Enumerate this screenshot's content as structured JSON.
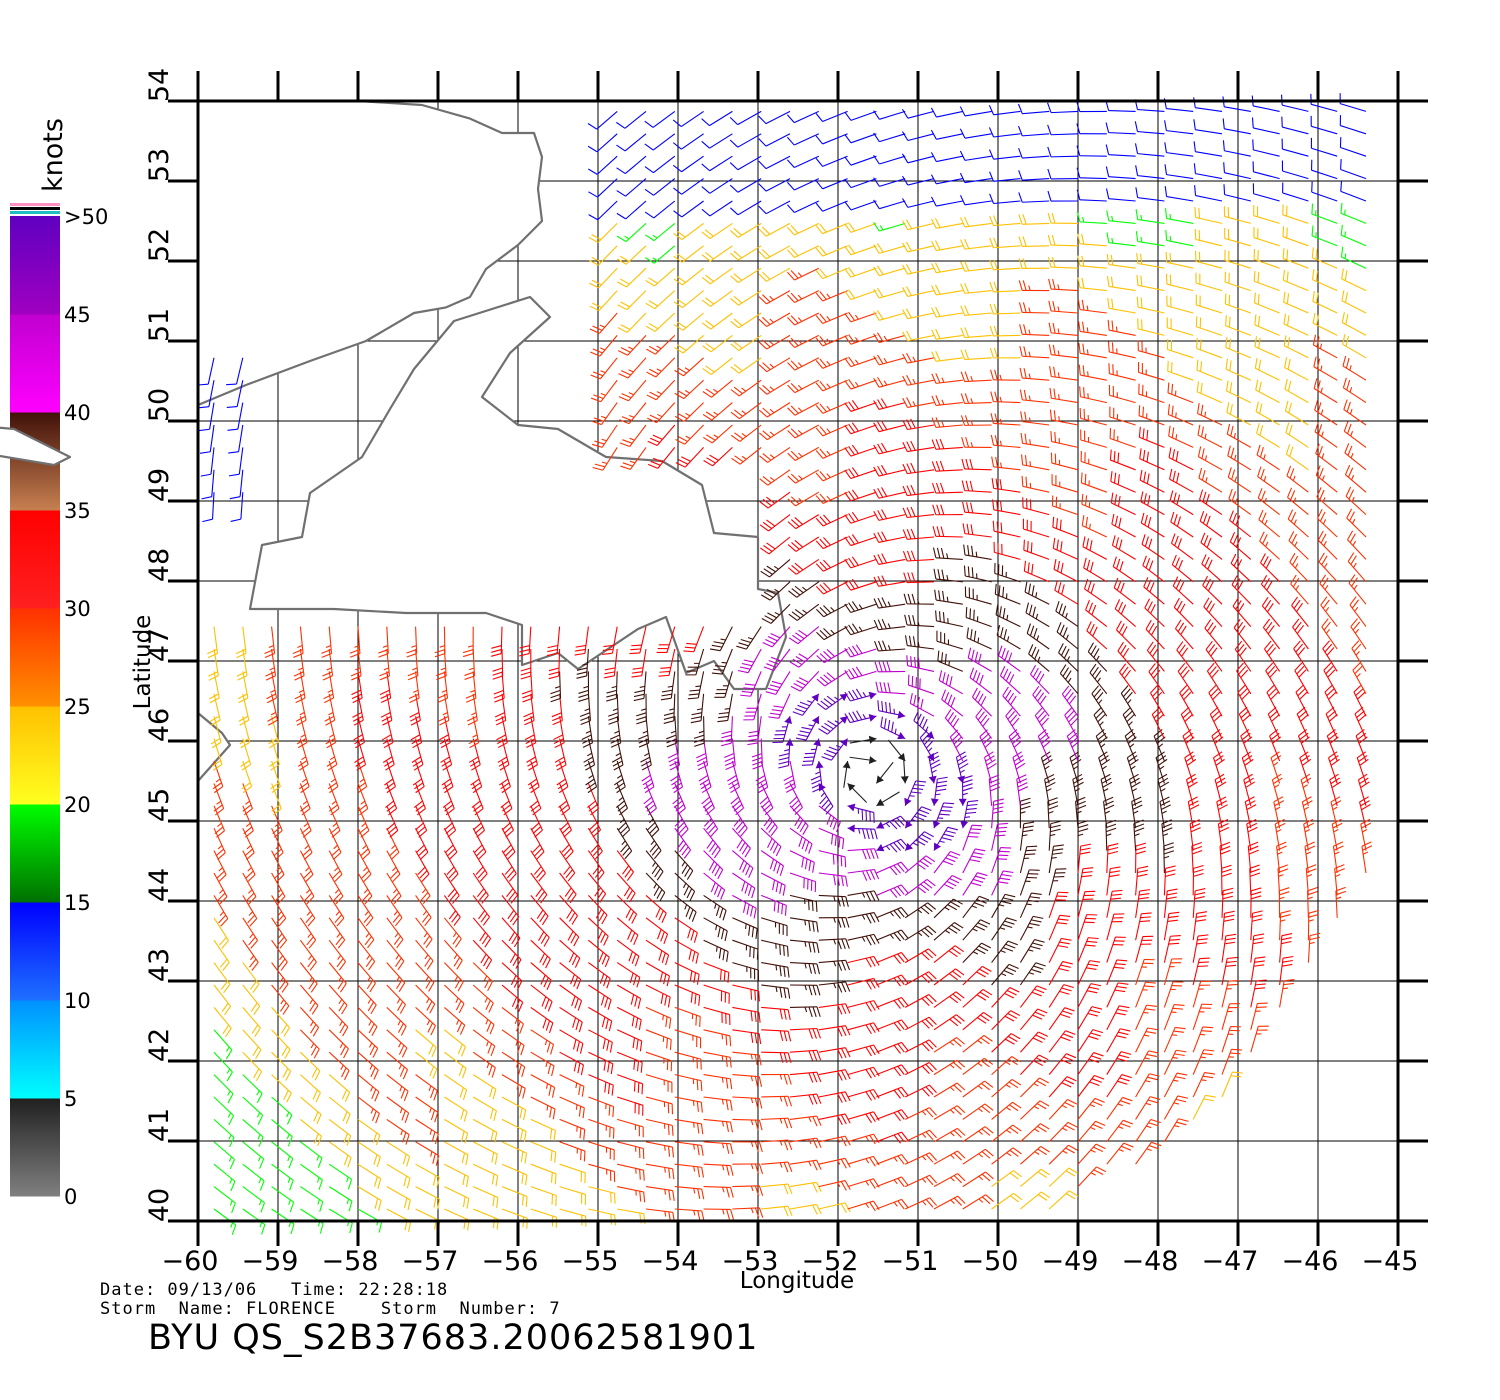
{
  "chart_data": {
    "type": "wind-barb-map",
    "xlabel": "Longitude",
    "ylabel": "Latitude",
    "xlim": [
      -60,
      -45
    ],
    "ylim": [
      40,
      54
    ],
    "x_ticks": [
      -60,
      -59,
      -58,
      -57,
      -56,
      -55,
      -54,
      -53,
      -52,
      -51,
      -50,
      -49,
      -48,
      -47,
      -46,
      -45
    ],
    "y_ticks": [
      40,
      41,
      42,
      43,
      44,
      45,
      46,
      47,
      48,
      49,
      50,
      51,
      52,
      53,
      54
    ],
    "grid": true,
    "storm_center": [
      -51.6,
      45.6
    ],
    "colorbar": {
      "title": "knots",
      "tick_labels": [
        "0",
        "5",
        "10",
        "15",
        "20",
        "25",
        "30",
        "35",
        "40",
        "45",
        ">50"
      ],
      "bands": [
        {
          "range": [
            0,
            5
          ],
          "colors": [
            "#808080",
            "#202020"
          ]
        },
        {
          "range": [
            5,
            10
          ],
          "colors": [
            "#00ffff",
            "#0090ff"
          ]
        },
        {
          "range": [
            10,
            15
          ],
          "colors": [
            "#1e70ff",
            "#0000ff"
          ]
        },
        {
          "range": [
            15,
            20
          ],
          "colors": [
            "#007000",
            "#00ff00"
          ]
        },
        {
          "range": [
            20,
            25
          ],
          "colors": [
            "#ffff20",
            "#ffc000"
          ]
        },
        {
          "range": [
            25,
            30
          ],
          "colors": [
            "#ff9000",
            "#ff3000"
          ]
        },
        {
          "range": [
            30,
            35
          ],
          "colors": [
            "#ff2020",
            "#ff0000"
          ]
        },
        {
          "range": [
            35,
            40
          ],
          "colors": [
            "#c88050",
            "#401008"
          ]
        },
        {
          "range": [
            40,
            45
          ],
          "colors": [
            "#ff00ff",
            "#c000d0"
          ]
        },
        {
          "range": [
            45,
            50
          ],
          "colors": [
            "#a000c0",
            "#6000c0"
          ]
        }
      ]
    }
  },
  "info": {
    "line1": "Date: 09/13/06   Time: 22:28:18",
    "line2": "Storm  Name: FLORENCE    Storm  Number: 7",
    "product": "BYU  QS_S2B37683.20062581901"
  }
}
